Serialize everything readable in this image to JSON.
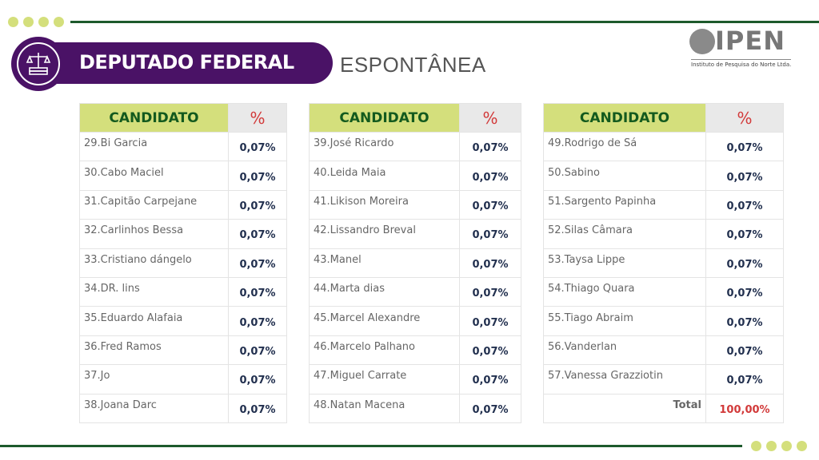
{
  "header": {
    "title": "DEPUTADO FEDERAL",
    "subtitle": "ESPONTÂNEA"
  },
  "logo": {
    "name": "IPEN",
    "tagline": "Instituto de Pesquisa do Norte Ltda."
  },
  "colors": {
    "purple": "#4a1266",
    "green": "#1d5a2c",
    "lime": "#d4df7c",
    "red": "#d23a3a"
  },
  "tables": [
    {
      "col_candidate": "CANDIDATO",
      "col_percent": "%",
      "rows": [
        {
          "name": "29.Bi Garcia",
          "pct": "0,07%"
        },
        {
          "name": "30.Cabo Maciel",
          "pct": "0,07%"
        },
        {
          "name": "31.Capitão Carpejane",
          "pct": "0,07%"
        },
        {
          "name": "32.Carlinhos Bessa",
          "pct": "0,07%"
        },
        {
          "name": "33.Cristiano dángelo",
          "pct": "0,07%"
        },
        {
          "name": "34.DR. lins",
          "pct": "0,07%"
        },
        {
          "name": "35.Eduardo Alafaia",
          "pct": "0,07%"
        },
        {
          "name": "36.Fred Ramos",
          "pct": "0,07%"
        },
        {
          "name": "37.Jo",
          "pct": "0,07%"
        },
        {
          "name": "38.Joana Darc",
          "pct": "0,07%"
        }
      ]
    },
    {
      "col_candidate": "CANDIDATO",
      "col_percent": "%",
      "rows": [
        {
          "name": "39.José Ricardo",
          "pct": "0,07%"
        },
        {
          "name": "40.Leida Maia",
          "pct": "0,07%"
        },
        {
          "name": "41.Likison Moreira",
          "pct": "0,07%"
        },
        {
          "name": "42.Lissandro Breval",
          "pct": "0,07%"
        },
        {
          "name": "43.Manel",
          "pct": "0,07%"
        },
        {
          "name": "44.Marta dias",
          "pct": "0,07%"
        },
        {
          "name": "45.Marcel Alexandre",
          "pct": "0,07%"
        },
        {
          "name": "46.Marcelo Palhano",
          "pct": "0,07%"
        },
        {
          "name": "47.Miguel Carrate",
          "pct": "0,07%"
        },
        {
          "name": "48.Natan Macena",
          "pct": "0,07%"
        }
      ]
    },
    {
      "col_candidate": "CANDIDATO",
      "col_percent": "%",
      "rows": [
        {
          "name": "49.Rodrigo de Sá",
          "pct": "0,07%"
        },
        {
          "name": "50.Sabino",
          "pct": "0,07%"
        },
        {
          "name": "51.Sargento Papinha",
          "pct": "0,07%"
        },
        {
          "name": "52.Silas Câmara",
          "pct": "0,07%"
        },
        {
          "name": "53.Taysa Lippe",
          "pct": "0,07%"
        },
        {
          "name": "54.Thiago Quara",
          "pct": "0,07%"
        },
        {
          "name": "55.Tiago Abraim",
          "pct": "0,07%"
        },
        {
          "name": "56.Vanderlan",
          "pct": "0,07%"
        },
        {
          "name": "57.Vanessa Grazziotin",
          "pct": "0,07%"
        }
      ],
      "total_label": "Total",
      "total_value": "100,00%"
    }
  ]
}
